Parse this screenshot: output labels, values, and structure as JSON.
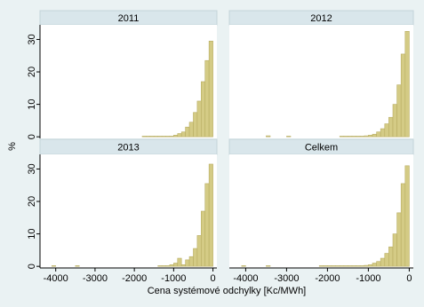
{
  "xlabel": "Cena systémové odchylky [Kc/MWh]",
  "ylabel": "%",
  "xlim": [
    -4400,
    100
  ],
  "xticks": [
    -4000,
    -3000,
    -2000,
    -1000,
    0
  ],
  "ylim": [
    -0.5,
    34.5
  ],
  "yticks": [
    0,
    10,
    20,
    30
  ],
  "chart_data": [
    {
      "type": "histogram",
      "title": "2011",
      "color": "#d4cb85",
      "bins": [
        -4200,
        -4100,
        -4000,
        -3900,
        -3800,
        -3700,
        -3600,
        -3500,
        -3400,
        -3300,
        -3200,
        -3100,
        -3000,
        -2900,
        -2800,
        -2700,
        -2600,
        -2500,
        -2400,
        -2300,
        -2200,
        -2100,
        -2000,
        -1900,
        -1800,
        -1700,
        -1600,
        -1500,
        -1400,
        -1300,
        -1200,
        -1100,
        -1000,
        -900,
        -800,
        -700,
        -600,
        -500,
        -400,
        -300,
        -200,
        -100,
        0
      ],
      "values": [
        0,
        0,
        0,
        0,
        0,
        0,
        0,
        0,
        0,
        0,
        0,
        0,
        0,
        0,
        0,
        0,
        0,
        0,
        0,
        0,
        0,
        0,
        0,
        0,
        0.2,
        0.2,
        0.2,
        0.2,
        0.2,
        0.2,
        0.2,
        0.2,
        0.5,
        1,
        1.5,
        3,
        4.5,
        7.5,
        11,
        17,
        23.5,
        29.5
      ]
    },
    {
      "type": "histogram",
      "title": "2012",
      "color": "#d4cb85",
      "bins": [
        -4200,
        -4100,
        -4000,
        -3900,
        -3800,
        -3700,
        -3600,
        -3500,
        -3400,
        -3300,
        -3200,
        -3100,
        -3000,
        -2900,
        -2800,
        -2700,
        -2600,
        -2500,
        -2400,
        -2300,
        -2200,
        -2100,
        -2000,
        -1900,
        -1800,
        -1700,
        -1600,
        -1500,
        -1400,
        -1300,
        -1200,
        -1100,
        -1000,
        -900,
        -800,
        -700,
        -600,
        -500,
        -400,
        -300,
        -200,
        -100,
        0
      ],
      "values": [
        0,
        0,
        0,
        0,
        0,
        0,
        0,
        0.3,
        0,
        0,
        0,
        0,
        0.2,
        0,
        0,
        0,
        0,
        0,
        0,
        0,
        0,
        0,
        0,
        0,
        0,
        0.2,
        0.2,
        0.2,
        0.2,
        0.2,
        0.2,
        0.3,
        0.5,
        0.8,
        1.5,
        2.5,
        4,
        6,
        10,
        16,
        25.5,
        32.5
      ]
    },
    {
      "type": "histogram",
      "title": "2013",
      "color": "#d4cb85",
      "bins": [
        -4200,
        -4100,
        -4000,
        -3900,
        -3800,
        -3700,
        -3600,
        -3500,
        -3400,
        -3300,
        -3200,
        -3100,
        -3000,
        -2900,
        -2800,
        -2700,
        -2600,
        -2500,
        -2400,
        -2300,
        -2200,
        -2100,
        -2000,
        -1900,
        -1800,
        -1700,
        -1600,
        -1500,
        -1400,
        -1300,
        -1200,
        -1100,
        -1000,
        -900,
        -800,
        -700,
        -600,
        -500,
        -400,
        -300,
        -200,
        -100,
        0
      ],
      "values": [
        0,
        0.2,
        0,
        0,
        0,
        0,
        0,
        0.2,
        0,
        0,
        0,
        0,
        0,
        0,
        0,
        0,
        0,
        0,
        0,
        0,
        0,
        0,
        0,
        0,
        0,
        0,
        0,
        0,
        0.2,
        0.2,
        0.2,
        0.5,
        1,
        2.5,
        0.5,
        2,
        3,
        5.5,
        9.5,
        17,
        25.5,
        31.5
      ]
    },
    {
      "type": "histogram",
      "title": "Celkem",
      "color": "#d4cb85",
      "bins": [
        -4200,
        -4100,
        -4000,
        -3900,
        -3800,
        -3700,
        -3600,
        -3500,
        -3400,
        -3300,
        -3200,
        -3100,
        -3000,
        -2900,
        -2800,
        -2700,
        -2600,
        -2500,
        -2400,
        -2300,
        -2200,
        -2100,
        -2000,
        -1900,
        -1800,
        -1700,
        -1600,
        -1500,
        -1400,
        -1300,
        -1200,
        -1100,
        -1000,
        -900,
        -800,
        -700,
        -600,
        -500,
        -400,
        -300,
        -200,
        -100,
        0
      ],
      "values": [
        0,
        0.2,
        0,
        0,
        0,
        0,
        0,
        0.2,
        0,
        0,
        0,
        0,
        0,
        0,
        0,
        0,
        0,
        0,
        0,
        0,
        0.2,
        0.2,
        0.2,
        0.2,
        0.2,
        0.2,
        0.2,
        0.2,
        0.2,
        0.2,
        0.2,
        0.3,
        0.5,
        1,
        1.5,
        2.5,
        4,
        6,
        10,
        16.5,
        25.5,
        31
      ]
    }
  ]
}
